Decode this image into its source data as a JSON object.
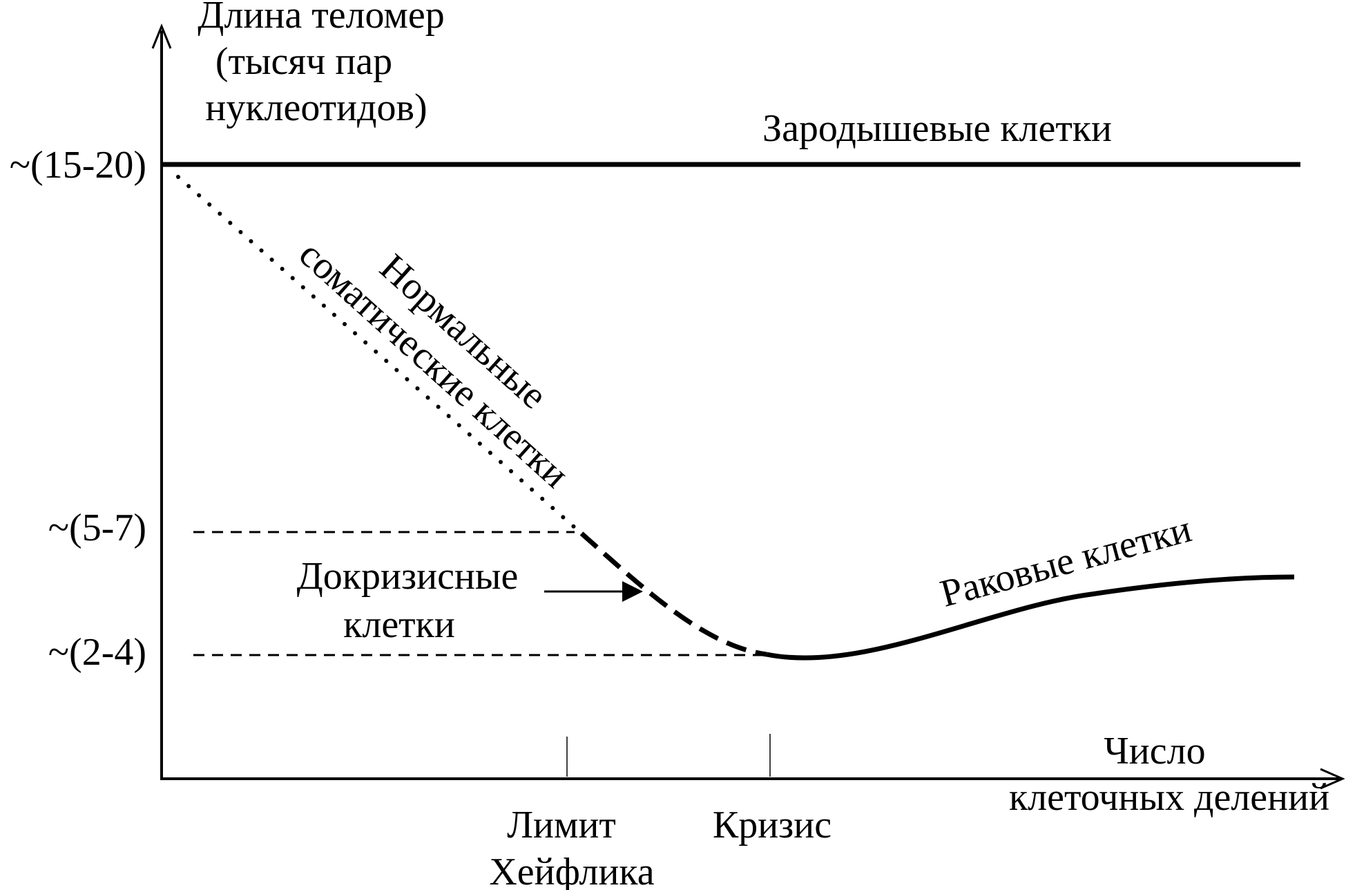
{
  "y_axis": {
    "label_lines": [
      "Длина теломер",
      "(тысяч пар",
      "нуклеотидов)"
    ],
    "ticks": [
      "~(15-20)",
      "~(5-7)",
      "~(2-4)"
    ]
  },
  "x_axis": {
    "label_lines": [
      "Число",
      "клеточных делений"
    ],
    "markers": [
      {
        "label_lines": [
          "Лимит",
          "Хейфлика"
        ]
      },
      {
        "label_lines": [
          "Кризис"
        ]
      }
    ]
  },
  "curves": {
    "germ": {
      "label": "Зародышевые клетки",
      "style": "solid"
    },
    "somatic": {
      "label_lines": [
        "Нормальные",
        "соматические клетки"
      ],
      "style": "dotted"
    },
    "precrisis": {
      "label_lines": [
        "Докризисные",
        "клетки"
      ],
      "style": "dashed"
    },
    "cancer": {
      "label": "Раковые клетки",
      "style": "solid"
    }
  },
  "colors": {
    "ink": "#000000",
    "background": "#ffffff"
  }
}
